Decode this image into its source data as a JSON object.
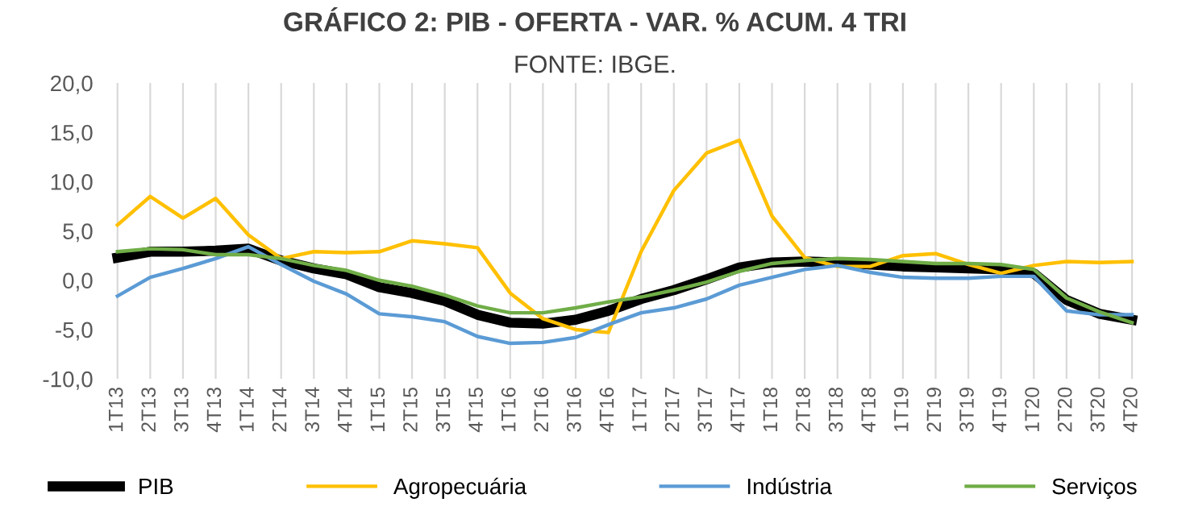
{
  "chart_data": {
    "type": "line",
    "title": "GRÁFICO 2: PIB - OFERTA - VAR. % ACUM. 4 TRI",
    "subtitle": "FONTE: IBGE.",
    "categories": [
      "1T13",
      "2T13",
      "3T13",
      "4T13",
      "1T14",
      "2T14",
      "3T14",
      "4T14",
      "1T15",
      "2T15",
      "3T15",
      "4T15",
      "1T16",
      "2T16",
      "3T16",
      "4T16",
      "1T17",
      "2T17",
      "3T17",
      "4T17",
      "1T18",
      "2T18",
      "3T18",
      "4T18",
      "1T19",
      "2T19",
      "3T19",
      "4T19",
      "1T20",
      "2T20",
      "3T20",
      "4T20"
    ],
    "series": [
      {
        "name": "PIB",
        "color": "#000000",
        "values": [
          2.3,
          2.9,
          2.9,
          3.0,
          3.2,
          2.0,
          1.2,
          0.6,
          -0.7,
          -1.3,
          -2.1,
          -3.5,
          -4.3,
          -4.4,
          -4.0,
          -3.1,
          -1.9,
          -1.0,
          0.1,
          1.3,
          1.8,
          1.9,
          1.8,
          1.6,
          1.4,
          1.3,
          1.2,
          1.1,
          0.7,
          -2.0,
          -3.4,
          -4.0
        ]
      },
      {
        "name": "Agropecuária",
        "color": "#ffc000",
        "values": [
          5.6,
          8.5,
          6.3,
          8.3,
          4.6,
          2.2,
          2.9,
          2.8,
          2.9,
          4.0,
          3.7,
          3.3,
          -1.3,
          -3.9,
          -5.0,
          -5.3,
          2.9,
          9.1,
          12.9,
          14.2,
          6.5,
          2.3,
          1.4,
          1.4,
          2.5,
          2.7,
          1.6,
          0.7,
          1.5,
          1.9,
          1.8,
          1.9
        ]
      },
      {
        "name": "Indústria",
        "color": "#5b9bd5",
        "values": [
          -1.6,
          0.3,
          1.2,
          2.2,
          3.4,
          1.6,
          -0.1,
          -1.4,
          -3.4,
          -3.7,
          -4.2,
          -5.7,
          -6.4,
          -6.3,
          -5.8,
          -4.5,
          -3.3,
          -2.8,
          -1.9,
          -0.5,
          0.3,
          1.1,
          1.5,
          0.8,
          0.3,
          0.2,
          0.2,
          0.4,
          0.4,
          -3.1,
          -3.5,
          -3.5
        ]
      },
      {
        "name": "Serviços",
        "color": "#70ad47",
        "values": [
          2.9,
          3.2,
          3.1,
          2.6,
          2.6,
          2.2,
          1.5,
          1.0,
          0.0,
          -0.6,
          -1.5,
          -2.6,
          -3.3,
          -3.3,
          -2.8,
          -2.2,
          -1.7,
          -1.0,
          -0.2,
          0.9,
          1.7,
          2.0,
          2.2,
          2.1,
          1.9,
          1.7,
          1.7,
          1.6,
          1.1,
          -1.8,
          -3.2,
          -4.3
        ]
      }
    ],
    "ylim": [
      -10,
      20
    ],
    "yticks": [
      {
        "value": -10,
        "label": "-10,0"
      },
      {
        "value": -5,
        "label": "-5,0"
      },
      {
        "value": 0,
        "label": "0,0"
      },
      {
        "value": 5,
        "label": "5,0"
      },
      {
        "value": 10,
        "label": "10,0"
      },
      {
        "value": 15,
        "label": "15,0"
      },
      {
        "value": 20,
        "label": "20,0"
      }
    ],
    "grid": "x",
    "legend": "bottom",
    "marker": "none",
    "line_style": "solid"
  }
}
